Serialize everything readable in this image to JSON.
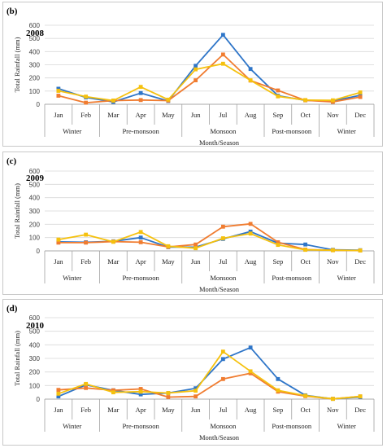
{
  "colors": {
    "series_blue": "#2e75c8",
    "series_orange": "#f07c30",
    "series_yellow": "#f5c10e"
  },
  "chart_data": [
    {
      "type": "line",
      "panel_label": "(b)",
      "title": "2008",
      "ylabel": "Total Rainfall (mm)",
      "xlabel": "Month/Season",
      "ylim": [
        0,
        600
      ],
      "yticks": [
        "0",
        "100",
        "200",
        "300",
        "400",
        "500",
        "600"
      ],
      "grid": true,
      "categories": [
        "Jan",
        "Feb",
        "Mar",
        "Apr",
        "May",
        "Jun",
        "Jul",
        "Aug",
        "Sep",
        "Oct",
        "Nov",
        "Dec"
      ],
      "season_groups": [
        {
          "label": "Winter",
          "start": 0,
          "end": 1
        },
        {
          "label": "Pre-monsoon",
          "start": 2,
          "end": 4
        },
        {
          "label": "Monsoon",
          "start": 5,
          "end": 7
        },
        {
          "label": "Post-monsoon",
          "start": 8,
          "end": 9
        },
        {
          "label": "Winter",
          "start": 10,
          "end": 11
        }
      ],
      "series": [
        {
          "color": "#2e75c8",
          "values": [
            118,
            52,
            18,
            85,
            25,
            292,
            527,
            268,
            65,
            30,
            25,
            68
          ]
        },
        {
          "color": "#f07c30",
          "values": [
            65,
            12,
            28,
            32,
            28,
            182,
            378,
            180,
            105,
            30,
            18,
            55
          ]
        },
        {
          "color": "#f5c10e",
          "values": [
            102,
            58,
            28,
            132,
            35,
            265,
            308,
            182,
            60,
            32,
            30,
            90
          ]
        }
      ]
    },
    {
      "type": "line",
      "panel_label": "(c)",
      "title": "2009",
      "ylabel": "Total Rainfall (mm)",
      "xlabel": "Month/Season",
      "ylim": [
        0,
        600
      ],
      "yticks": [
        "0",
        "100",
        "200",
        "300",
        "400",
        "500",
        "600"
      ],
      "grid": true,
      "categories": [
        "Jan",
        "Feb",
        "Mar",
        "Apr",
        "May",
        "Jun",
        "Jul",
        "Aug",
        "Sep",
        "Oct",
        "Nov",
        "Dec"
      ],
      "season_groups": [
        {
          "label": "Winter",
          "start": 0,
          "end": 1
        },
        {
          "label": "Pre-monsoon",
          "start": 2,
          "end": 4
        },
        {
          "label": "Monsoon",
          "start": 5,
          "end": 7
        },
        {
          "label": "Post-monsoon",
          "start": 8,
          "end": 9
        },
        {
          "label": "Winter",
          "start": 10,
          "end": 11
        }
      ],
      "series": [
        {
          "color": "#2e75c8",
          "values": [
            68,
            65,
            72,
            100,
            28,
            28,
            90,
            145,
            58,
            48,
            8,
            5
          ]
        },
        {
          "color": "#f07c30",
          "values": [
            62,
            62,
            70,
            65,
            30,
            48,
            182,
            203,
            65,
            10,
            5,
            3
          ]
        },
        {
          "color": "#f5c10e",
          "values": [
            85,
            122,
            68,
            142,
            35,
            20,
            95,
            130,
            45,
            8,
            5,
            3
          ]
        }
      ]
    },
    {
      "type": "line",
      "panel_label": "(d)",
      "title": "2010",
      "ylabel": "Total Rainfall (mm)",
      "xlabel": "Month/Season",
      "ylim": [
        0,
        600
      ],
      "yticks": [
        "0",
        "100",
        "200",
        "300",
        "400",
        "500",
        "600"
      ],
      "grid": true,
      "categories": [
        "Jan",
        "Feb",
        "Mar",
        "Apr",
        "May",
        "Jun",
        "Jul",
        "Aug",
        "Sep",
        "Oct",
        "Nov",
        "Dec"
      ],
      "season_groups": [
        {
          "label": "Winter",
          "start": 0,
          "end": 1
        },
        {
          "label": "Pre-monsoon",
          "start": 2,
          "end": 4
        },
        {
          "label": "Monsoon",
          "start": 5,
          "end": 7
        },
        {
          "label": "Post-monsoon",
          "start": 8,
          "end": 9
        },
        {
          "label": "Winter",
          "start": 10,
          "end": 11
        }
      ],
      "series": [
        {
          "color": "#2e75c8",
          "values": [
            20,
            105,
            65,
            35,
            45,
            80,
            295,
            380,
            148,
            28,
            2,
            15
          ]
        },
        {
          "color": "#f07c30",
          "values": [
            68,
            82,
            65,
            75,
            15,
            20,
            148,
            190,
            55,
            22,
            2,
            20
          ]
        },
        {
          "color": "#f5c10e",
          "values": [
            40,
            112,
            50,
            55,
            45,
            62,
            350,
            205,
            65,
            25,
            2,
            20
          ]
        }
      ]
    }
  ]
}
